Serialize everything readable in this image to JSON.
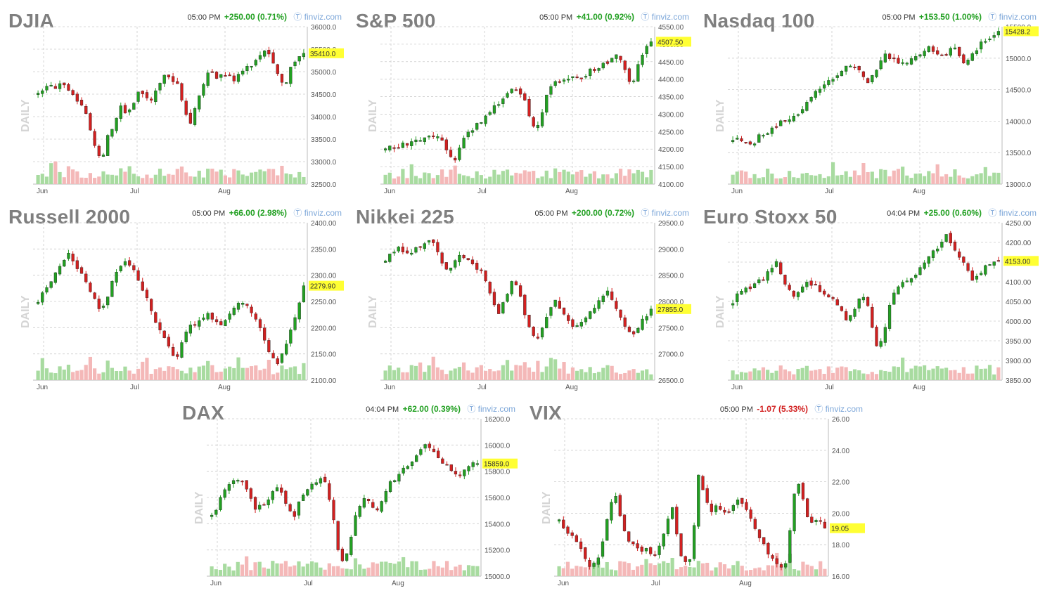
{
  "colors": {
    "up": "#22a022",
    "down": "#d22020",
    "vol_up": "#a8dba0",
    "vol_down": "#f4b8b8",
    "last_bg": "#ffff33",
    "grid": "#cccccc",
    "axis_text": "#555555",
    "source": "#7da7d9"
  },
  "panels": [
    {
      "title": "DJIA",
      "time": "05:00 PM",
      "change": "+250.00 (0.71%)",
      "direction": "up",
      "source": "finviz.com",
      "period_label": "DAILY",
      "chart_data": {
        "type": "candlestick",
        "ylim": [
          32500,
          36000
        ],
        "y_ticks": [
          "36000.0",
          "35500.0",
          "35000.0",
          "34500.0",
          "34000.0",
          "33500.0",
          "33000.0",
          "32500.0"
        ],
        "x_ticks": [
          "Jun",
          "Jul",
          "Aug"
        ],
        "last_value": "35410.0",
        "path": [
          34500,
          34600,
          34700,
          34650,
          34750,
          34600,
          34400,
          34200,
          33900,
          33300,
          33000,
          33600,
          33800,
          34200,
          34100,
          34300,
          34600,
          34500,
          34300,
          34700,
          34900,
          34800,
          34750,
          34200,
          33800,
          34300,
          34700,
          35000,
          34900,
          34900,
          35000,
          34800,
          34950,
          35100,
          35200,
          35400,
          35450,
          35300,
          34900,
          34700,
          35100,
          35300,
          35410
        ]
      }
    },
    {
      "title": "S&P 500",
      "time": "05:00 PM",
      "change": "+41.00 (0.92%)",
      "direction": "up",
      "source": "finviz.com",
      "period_label": "DAILY",
      "chart_data": {
        "type": "candlestick",
        "ylim": [
          4100,
          4550
        ],
        "y_ticks": [
          "4550.00",
          "4500.00",
          "4450.00",
          "4400.00",
          "4350.00",
          "4300.00",
          "4250.00",
          "4200.00",
          "4150.00",
          "4100.00"
        ],
        "x_ticks": [
          "Jun",
          "Jul",
          "Aug"
        ],
        "last_value": "4507.50",
        "path": [
          4200,
          4210,
          4205,
          4215,
          4220,
          4225,
          4230,
          4240,
          4235,
          4225,
          4180,
          4170,
          4220,
          4250,
          4260,
          4280,
          4300,
          4320,
          4330,
          4350,
          4370,
          4360,
          4340,
          4280,
          4260,
          4320,
          4380,
          4400,
          4395,
          4400,
          4410,
          4400,
          4420,
          4430,
          4440,
          4450,
          4460,
          4470,
          4420,
          4380,
          4440,
          4480,
          4507
        ]
      }
    },
    {
      "title": "Nasdaq 100",
      "time": "05:00 PM",
      "change": "+153.50 (1.00%)",
      "direction": "up",
      "source": "finviz.com",
      "period_label": "DAILY",
      "chart_data": {
        "type": "candlestick",
        "ylim": [
          13000,
          15500
        ],
        "y_ticks": [
          "15500.0",
          "15000.0",
          "14500.0",
          "14000.0",
          "13500.0",
          "13000.0"
        ],
        "x_ticks": [
          "Jun",
          "Jul",
          "Aug"
        ],
        "last_value": "15428.2",
        "path": [
          13700,
          13720,
          13680,
          13600,
          13750,
          13800,
          13850,
          13950,
          14000,
          14050,
          14100,
          14200,
          14350,
          14450,
          14550,
          14600,
          14700,
          14800,
          14850,
          14900,
          14800,
          14600,
          14700,
          14900,
          15050,
          15000,
          14950,
          14900,
          15000,
          15050,
          15100,
          15150,
          15100,
          15050,
          15100,
          15150,
          15000,
          14900,
          15100,
          15200,
          15300,
          15350,
          15428
        ]
      }
    },
    {
      "title": "Russell 2000",
      "time": "05:00 PM",
      "change": "+66.00 (2.98%)",
      "direction": "up",
      "source": "finviz.com",
      "period_label": "DAILY",
      "chart_data": {
        "type": "candlestick",
        "ylim": [
          2100,
          2400
        ],
        "y_ticks": [
          "2400.00",
          "2350.00",
          "2300.00",
          "2250.00",
          "2200.00",
          "2150.00",
          "2100.00"
        ],
        "x_ticks": [
          "Jun",
          "Jul",
          "Aug"
        ],
        "last_value": "2279.90",
        "path": [
          2250,
          2270,
          2290,
          2310,
          2330,
          2340,
          2320,
          2300,
          2280,
          2250,
          2230,
          2260,
          2300,
          2320,
          2330,
          2310,
          2290,
          2260,
          2230,
          2200,
          2180,
          2150,
          2140,
          2180,
          2200,
          2210,
          2220,
          2230,
          2210,
          2200,
          2220,
          2240,
          2250,
          2240,
          2230,
          2200,
          2170,
          2140,
          2130,
          2160,
          2200,
          2230,
          2280
        ]
      }
    },
    {
      "title": "Nikkei 225",
      "time": "05:00 PM",
      "change": "+200.00 (0.72%)",
      "direction": "up",
      "source": "finviz.com",
      "period_label": "DAILY",
      "chart_data": {
        "type": "candlestick",
        "ylim": [
          26500,
          29500
        ],
        "y_ticks": [
          "29500.0",
          "29000.0",
          "28500.0",
          "28000.0",
          "27500.0",
          "27000.0",
          "26500.0"
        ],
        "x_ticks": [
          "Jun",
          "Jul",
          "Aug"
        ],
        "last_value": "27855.0",
        "path": [
          28800,
          28900,
          29000,
          28950,
          28900,
          29050,
          29100,
          29200,
          29000,
          28700,
          28600,
          28800,
          28900,
          28800,
          28700,
          28600,
          28400,
          28000,
          27700,
          28100,
          28400,
          28200,
          27800,
          27400,
          27300,
          27600,
          27900,
          28000,
          27800,
          27600,
          27500,
          27600,
          27700,
          27900,
          28000,
          28200,
          28000,
          27700,
          27500,
          27300,
          27500,
          27700,
          27855
        ]
      }
    },
    {
      "title": "Euro Stoxx 50",
      "time": "04:04 PM",
      "change": "+25.00 (0.60%)",
      "direction": "up",
      "source": "finviz.com",
      "period_label": "DAILY",
      "chart_data": {
        "type": "candlestick",
        "ylim": [
          3850,
          4250
        ],
        "y_ticks": [
          "4250.00",
          "4200.00",
          "4150.00",
          "4100.00",
          "4050.00",
          "4000.00",
          "3950.00",
          "3900.00",
          "3850.00"
        ],
        "x_ticks": [
          "Jun",
          "Jul",
          "Aug"
        ],
        "last_value": "4153.00",
        "path": [
          4050,
          4070,
          4080,
          4090,
          4100,
          4110,
          4130,
          4150,
          4100,
          4080,
          4060,
          4090,
          4100,
          4090,
          4070,
          4060,
          4050,
          4040,
          4000,
          4020,
          4060,
          4070,
          3990,
          3920,
          3980,
          4050,
          4090,
          4100,
          4110,
          4120,
          4140,
          4160,
          4180,
          4200,
          4220,
          4180,
          4160,
          4130,
          4100,
          4120,
          4140,
          4150,
          4153
        ]
      }
    },
    {
      "title": "DAX",
      "time": "04:04 PM",
      "change": "+62.00 (0.39%)",
      "direction": "up",
      "source": "finviz.com",
      "period_label": "DAILY",
      "chart_data": {
        "type": "candlestick",
        "ylim": [
          15000,
          16200
        ],
        "y_ticks": [
          "16200.0",
          "16000.0",
          "15800.0",
          "15600.0",
          "15400.0",
          "15200.0",
          "15000.0"
        ],
        "x_ticks": [
          "Jun",
          "Jul",
          "Aug"
        ],
        "last_value": "15859.0",
        "path": [
          15450,
          15550,
          15650,
          15700,
          15750,
          15700,
          15600,
          15500,
          15550,
          15600,
          15700,
          15650,
          15500,
          15450,
          15600,
          15650,
          15700,
          15750,
          15700,
          15500,
          15200,
          15100,
          15300,
          15500,
          15600,
          15550,
          15500,
          15600,
          15700,
          15750,
          15800,
          15850,
          15900,
          15950,
          16000,
          15950,
          15900,
          15850,
          15800,
          15750,
          15800,
          15850,
          15859
        ]
      }
    },
    {
      "title": "VIX",
      "time": "05:00 PM",
      "change": "-1.07 (5.33%)",
      "direction": "down",
      "source": "finviz.com",
      "period_label": "DAILY",
      "chart_data": {
        "type": "candlestick",
        "ylim": [
          16,
          26
        ],
        "y_ticks": [
          "26.00",
          "24.00",
          "22.00",
          "20.00",
          "18.00",
          "16.00"
        ],
        "x_ticks": [
          "Jun",
          "Jul",
          "Aug"
        ],
        "last_value": "19.05",
        "path": [
          19.5,
          19.0,
          18.6,
          18.0,
          17.2,
          16.5,
          17.0,
          18.5,
          20.5,
          21.0,
          19.0,
          18.3,
          17.8,
          17.5,
          17.8,
          17.2,
          18.0,
          19.5,
          20.5,
          17.5,
          17.0,
          17.3,
          22.5,
          21.0,
          20.0,
          20.5,
          20.2,
          20.0,
          21.0,
          20.5,
          19.8,
          19.0,
          18.2,
          17.5,
          16.8,
          16.5,
          17.0,
          21.0,
          22.0,
          20.0,
          19.5,
          19.8,
          19.05
        ]
      }
    }
  ]
}
